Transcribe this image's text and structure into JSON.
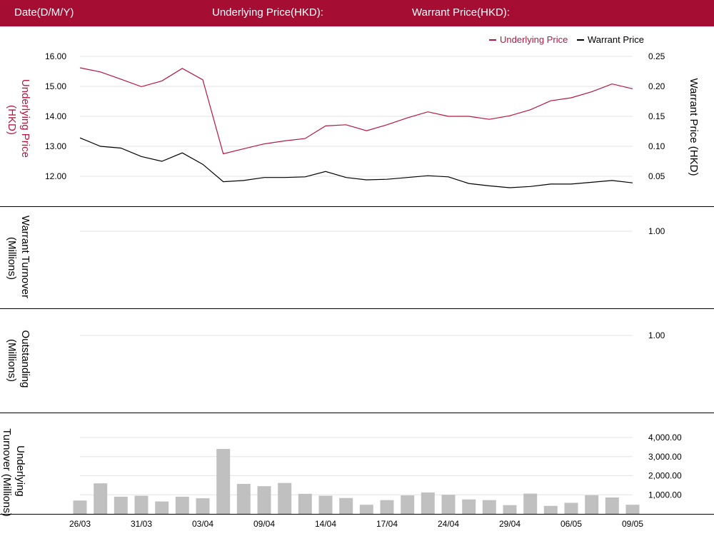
{
  "header": {
    "date_label": "Date(D/M/Y)",
    "underlying_label": "Underlying Price(HKD):",
    "warrant_label": "Warrant Price(HKD):"
  },
  "colors": {
    "header_bg": "#a50d32",
    "underlying_line": "#b5173f",
    "warrant_line": "#000000",
    "bars": "#c0c0c0"
  },
  "chart_data": [
    {
      "type": "line",
      "legend": [
        "Underlying Price",
        "Warrant Price"
      ],
      "legend_position": "top-right",
      "grid": true,
      "left_axis": {
        "label": "Underlying Price (HKD)",
        "ticks": [
          "16.00",
          "15.00",
          "14.00",
          "13.00",
          "12.00"
        ],
        "range": [
          11.2,
          16.0
        ]
      },
      "right_axis": {
        "label": "Warrant  Price (HKD)",
        "ticks": [
          "0.25",
          "0.20",
          "0.15",
          "0.10",
          "0.05"
        ],
        "range": [
          0.0,
          0.25
        ]
      },
      "series": [
        {
          "name": "Underlying Price",
          "axis": "left",
          "values": [
            15.62,
            15.48,
            15.24,
            14.99,
            15.18,
            15.6,
            15.22,
            12.75,
            12.92,
            13.08,
            13.18,
            13.26,
            13.68,
            13.72,
            13.52,
            13.72,
            13.95,
            14.15,
            14.0,
            14.0,
            13.9,
            14.02,
            14.22,
            14.52,
            14.62,
            14.82,
            15.08,
            14.92
          ]
        },
        {
          "name": "Warrant Price",
          "axis": "right",
          "values": [
            0.114,
            0.1,
            0.097,
            0.083,
            0.075,
            0.089,
            0.07,
            0.041,
            0.043,
            0.048,
            0.048,
            0.049,
            0.058,
            0.048,
            0.044,
            0.045,
            0.048,
            0.051,
            0.049,
            0.038,
            0.034,
            0.031,
            0.033,
            0.037,
            0.037,
            0.04,
            0.043,
            0.039
          ]
        }
      ]
    },
    {
      "type": "bar",
      "ylabel": "Warrant  Turnover (Millions)",
      "ticks": [
        "1.00"
      ],
      "grid": true,
      "values": []
    },
    {
      "type": "bar",
      "ylabel": "Outstanding (Millions)",
      "ticks": [
        "1.00"
      ],
      "grid": true,
      "values": []
    },
    {
      "type": "bar",
      "ylabel": "Underlying Turnover (Millions)",
      "ticks": [
        "4,000.00",
        "3,000.00",
        "2,000.00",
        "1,000.00"
      ],
      "ylim": [
        0,
        4000
      ],
      "grid": true,
      "values": [
        700,
        1600,
        900,
        950,
        650,
        900,
        820,
        3400,
        1570,
        1450,
        1620,
        1050,
        950,
        830,
        480,
        720,
        970,
        1120,
        1000,
        760,
        720,
        460,
        1060,
        420,
        580,
        980,
        860,
        480
      ]
    }
  ],
  "x_axis": {
    "tick_labels": [
      "26/03",
      "31/03",
      "03/04",
      "09/04",
      "14/04",
      "17/04",
      "24/04",
      "29/04",
      "06/05",
      "09/05"
    ],
    "tick_indices": [
      0,
      3,
      6,
      9,
      12,
      15,
      18,
      21,
      24,
      27
    ]
  }
}
